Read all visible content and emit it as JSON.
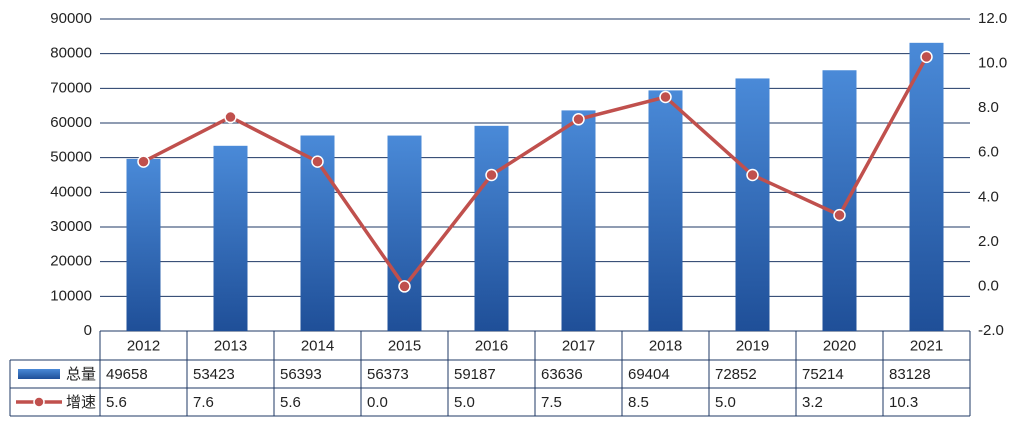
{
  "chart_data": {
    "type": "bar",
    "categories": [
      "2012",
      "2013",
      "2014",
      "2015",
      "2016",
      "2017",
      "2018",
      "2019",
      "2020",
      "2021"
    ],
    "series": [
      {
        "name": "总量",
        "color": "#2f6bbd",
        "values": [
          49658,
          53423,
          56393,
          56373,
          59187,
          63636,
          69404,
          72852,
          75214,
          83128
        ]
      },
      {
        "name": "增速",
        "type": "line",
        "axis": "y2",
        "color": "#c0504d",
        "values": [
          5.6,
          7.6,
          5.6,
          0,
          5,
          7.5,
          8.5,
          5,
          3.2,
          10.3
        ],
        "value_labels": [
          "5.6",
          "7.6",
          "5.6",
          "0.0",
          "5.0",
          "7.5",
          "8.5",
          "5.0",
          "3.2",
          "10.3"
        ]
      }
    ],
    "ylim": [
      0,
      90000
    ],
    "yticks": [
      0,
      10000,
      20000,
      30000,
      40000,
      50000,
      60000,
      70000,
      80000,
      90000
    ],
    "y2lim": [
      -2,
      12
    ],
    "y2ticks": [
      {
        "value": -2,
        "label": "-2.0"
      },
      {
        "value": 0,
        "label": "0.0"
      },
      {
        "value": 2,
        "label": "2.0"
      },
      {
        "value": 4,
        "label": "4.0"
      },
      {
        "value": 6,
        "label": "6.0"
      },
      {
        "value": 8,
        "label": "8.0"
      },
      {
        "value": 10,
        "label": "10.0"
      },
      {
        "value": 12,
        "label": "12.0"
      }
    ],
    "grid": true
  }
}
